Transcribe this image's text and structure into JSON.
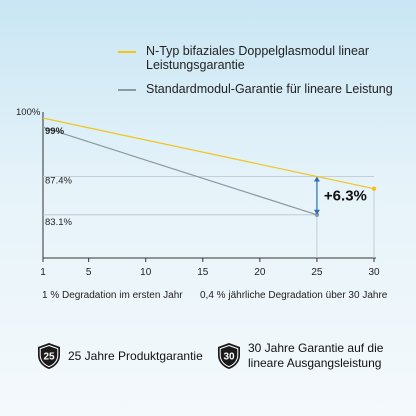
{
  "colors": {
    "series_n": "#f0c419",
    "series_std": "#8d98a0",
    "axis": "#333333",
    "guide": "#b9c4cc",
    "arrow": "#2a6ebb"
  },
  "chart_data": {
    "type": "line",
    "ylim": [
      76,
      100
    ],
    "xlim": [
      1,
      30
    ],
    "x_ticks": [
      1,
      5,
      10,
      15,
      20,
      25,
      30
    ],
    "x_tick_labels": [
      "1",
      "5",
      "10",
      "15",
      "20",
      "25",
      "30"
    ],
    "y_labels": {
      "top": "100%",
      "start": "99%",
      "mid_high": "87.4%",
      "mid_low": "83.1%"
    },
    "legend": [
      "N-Typ bifaziales Doppelglasmodul linear Leistungsgarantie",
      "Standardmodul-Garantie für lineare Leistung"
    ],
    "series": [
      {
        "name": "N-Typ bifaziales Doppelglasmodul linear Leistungsgarantie",
        "x": [
          1,
          30
        ],
        "y": [
          99,
          87.4
        ]
      },
      {
        "name": "Standardmodul-Garantie für lineare Leistung",
        "x": [
          1,
          25
        ],
        "y": [
          97.5,
          83.1
        ]
      }
    ],
    "annotation": {
      "x": 25,
      "y_from": 83.1,
      "y_to": 89.4,
      "label": "+6.3%"
    }
  },
  "notes": {
    "left": "1 % Degradation im ersten Jahr",
    "right": "0,4 % jährliche Degradation über 30 Jahre"
  },
  "features": [
    {
      "number": "25",
      "text": "25 Jahre Produktgarantie"
    },
    {
      "number": "30",
      "text": "30 Jahre Garantie auf die lineare Ausgangsleistung"
    }
  ]
}
